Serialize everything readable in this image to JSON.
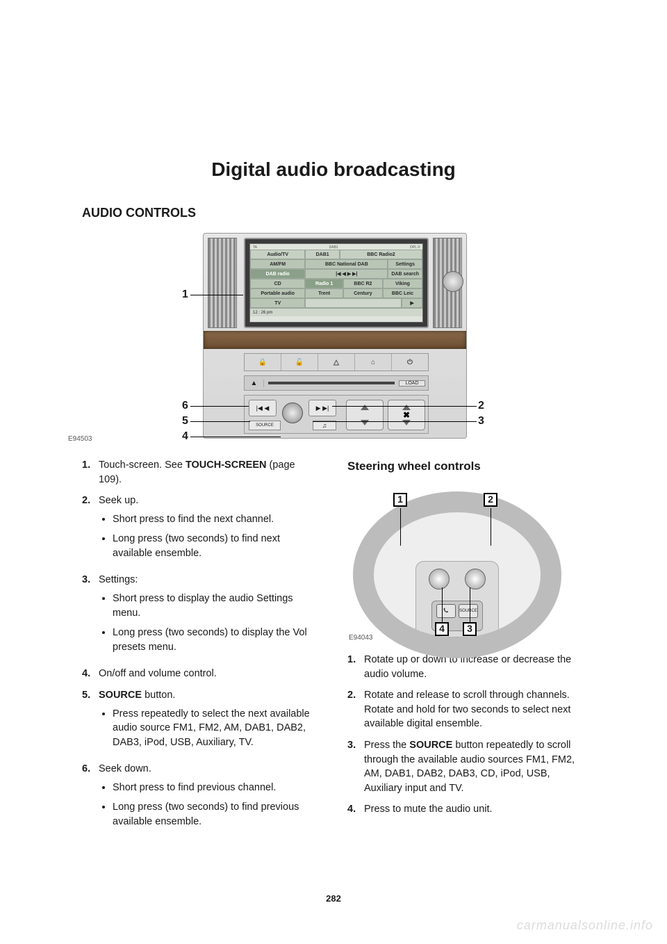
{
  "page_title": "Digital audio broadcasting",
  "section_heading": "AUDIO CONTROLS",
  "page_number": "282",
  "watermark": "carmanualsonline.info",
  "diagram1": {
    "caption": "E94503",
    "callouts": [
      "1",
      "2",
      "3",
      "4",
      "5",
      "6"
    ],
    "screen": {
      "top_bar": {
        "ta": "TA",
        "dab1": "DAB1",
        "dpl": "DPL II"
      },
      "header": {
        "audio_tv": "Audio/TV",
        "dab1": "DAB1",
        "station": "BBC Radio2"
      },
      "rows": [
        {
          "left": "AM/FM",
          "mid": "BBC National DAB",
          "right": "Settings"
        },
        {
          "left": "DAB radio",
          "mid_icons": "|◀ ◀   ▶ ▶|",
          "right": "DAB search"
        },
        {
          "left": "CD",
          "c1": "Radio 1",
          "c2": "BBC R2",
          "c3": "Viking"
        },
        {
          "left": "Portable audio",
          "c1": "Trent",
          "c2": "Century",
          "c3": "BBC Leic"
        },
        {
          "left": "TV",
          "arrow": "▶"
        }
      ],
      "time": "12 : 26 pm"
    },
    "btn_strip": [
      "🔒",
      "🔓",
      "△",
      "⌂",
      "⏻"
    ],
    "cd": {
      "eject": "▲",
      "load": "LOAD"
    },
    "controls": {
      "seek_l": "|◀ ◀",
      "seek_r": "▶ ▶|",
      "source": "SOURCE",
      "note": "♫",
      "rocker2_center": "✖"
    }
  },
  "left_column": [
    {
      "n": "1.",
      "text_pre": "Touch-screen. See ",
      "bold": "TOUCH-SCREEN",
      "text_post": " (page 109)."
    },
    {
      "n": "2.",
      "text": "Seek up.",
      "bullets": [
        "Short press to find the next channel.",
        "Long press (two seconds) to find next available ensemble."
      ]
    },
    {
      "n": "3.",
      "text": "Settings:",
      "bullets": [
        "Short press to display the audio Settings menu.",
        "Long press (two seconds) to display the Vol presets menu."
      ]
    },
    {
      "n": "4.",
      "text": "On/off and volume control."
    },
    {
      "n": "5.",
      "bold": "SOURCE",
      "text_post": " button.",
      "bullets": [
        "Press repeatedly to select the next available audio source FM1, FM2, AM, DAB1, DAB2, DAB3, iPod, USB, Auxiliary, TV."
      ]
    },
    {
      "n": "6.",
      "text": "Seek down.",
      "bullets": [
        "Short press to find previous channel.",
        "Long press (two seconds) to find previous available ensemble."
      ]
    }
  ],
  "right_column": {
    "subheading": "Steering wheel controls",
    "diagram": {
      "caption": "E94043",
      "callouts": [
        "1",
        "2",
        "3",
        "4"
      ],
      "pod_src": "SOURCE",
      "pod_phone": "📞"
    },
    "items": [
      {
        "n": "1.",
        "text": "Rotate up or down to increase or decrease the audio volume."
      },
      {
        "n": "2.",
        "text": "Rotate and release to scroll through channels. Rotate and hold for two seconds to select next available digital ensemble."
      },
      {
        "n": "3.",
        "text_pre": "Press the ",
        "bold": "SOURCE",
        "text_post": " button repeatedly to scroll through the available audio sources FM1, FM2, AM, DAB1, DAB2, DAB3, CD, iPod, USB, Auxiliary input and TV."
      },
      {
        "n": "4.",
        "text": "Press to mute the audio unit."
      }
    ]
  }
}
